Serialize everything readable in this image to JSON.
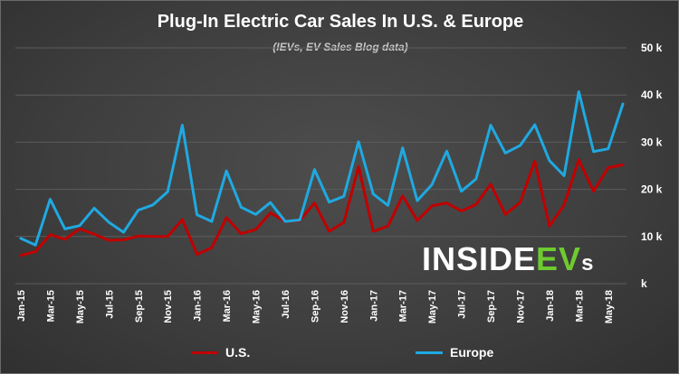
{
  "chart_data": {
    "type": "line",
    "title": "Plug-In Electric Car Sales In U.S. & Europe",
    "subtitle": "(IEVs, EV Sales Blog data)",
    "categories": [
      "Jan-15",
      "Feb-15",
      "Mar-15",
      "Apr-15",
      "May-15",
      "Jun-15",
      "Jul-15",
      "Aug-15",
      "Sep-15",
      "Oct-15",
      "Nov-15",
      "Dec-15",
      "Jan-16",
      "Feb-16",
      "Mar-16",
      "Apr-16",
      "May-16",
      "Jun-16",
      "Jul-16",
      "Aug-16",
      "Sep-16",
      "Oct-16",
      "Nov-16",
      "Dec-16",
      "Jan-17",
      "Feb-17",
      "Mar-17",
      "Apr-17",
      "May-17",
      "Jun-17",
      "Jul-17",
      "Aug-17",
      "Sep-17",
      "Oct-17",
      "Nov-17",
      "Dec-17",
      "Jan-18",
      "Feb-18",
      "Mar-18",
      "Apr-18",
      "May-18",
      "Jun-18"
    ],
    "x_tick_labels": [
      "Jan-15",
      "Mar-15",
      "May-15",
      "Jul-15",
      "Sep-15",
      "Nov-15",
      "Jan-16",
      "Mar-16",
      "May-16",
      "Jul-16",
      "Sep-16",
      "Nov-16",
      "Jan-17",
      "Mar-17",
      "May-17",
      "Jul-17",
      "Sep-17",
      "Nov-17",
      "Jan-18",
      "Mar-18",
      "May-18"
    ],
    "y_tick_labels": [
      "k",
      "10 k",
      "20 k",
      "30 k",
      "40 k",
      "50 k"
    ],
    "ylim": [
      0,
      50000
    ],
    "series": [
      {
        "name": "U.S.",
        "color": "#c00000",
        "values": [
          6000,
          6800,
          10400,
          9400,
          11600,
          10500,
          9200,
          9300,
          10100,
          10000,
          10000,
          13600,
          6200,
          7600,
          14000,
          10600,
          11500,
          15000,
          13200,
          13400,
          17100,
          11100,
          13000,
          24800,
          11100,
          12200,
          18600,
          13400,
          16500,
          17100,
          15400,
          16800,
          21100,
          14700,
          17200,
          26000,
          12200,
          16700,
          26300,
          19600,
          24600,
          25200
        ]
      },
      {
        "name": "Europe",
        "color": "#1fa9e1",
        "values": [
          9600,
          8200,
          17900,
          11600,
          12300,
          16000,
          13000,
          10900,
          15600,
          16700,
          19500,
          33600,
          14600,
          13200,
          23900,
          16200,
          14700,
          17200,
          13200,
          13500,
          24200,
          17300,
          18500,
          30100,
          19000,
          16600,
          28800,
          17600,
          21000,
          28100,
          19600,
          22200,
          33600,
          27700,
          29300,
          33700,
          26100,
          22900,
          40700,
          28000,
          28600,
          38100
        ]
      }
    ],
    "grid": true,
    "legend_position": "bottom"
  },
  "brand": {
    "part1": "INSIDE",
    "part2": "EV",
    "part3": "s",
    "colors": {
      "inside": "#ffffff",
      "ev": "#6ecb2f"
    }
  }
}
